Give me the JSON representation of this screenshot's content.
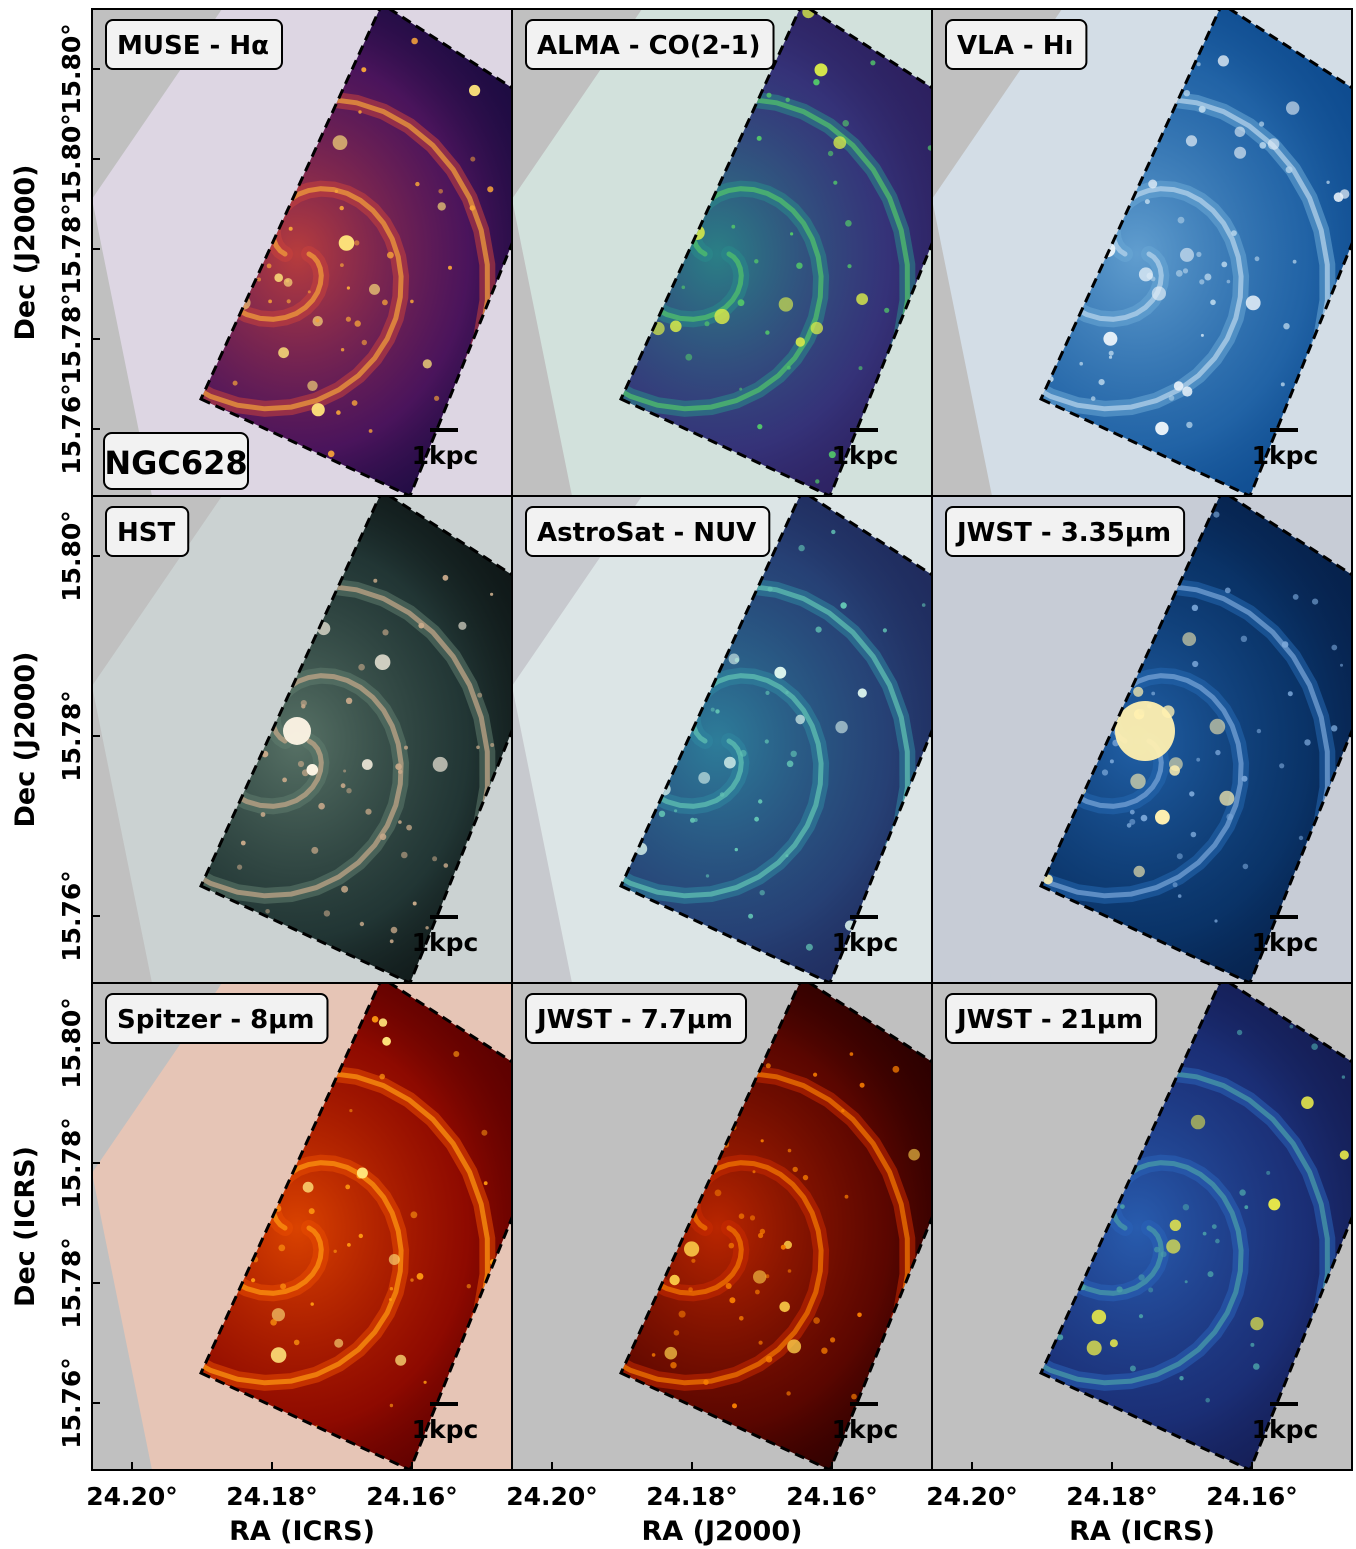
{
  "figure": {
    "galaxy_label": "NGC628",
    "scale_bar_label": "1kpc",
    "rows": [
      {
        "ylabel": "Dec (J2000)",
        "yticks": [
          "15.80°",
          "15.80°",
          "15.78°",
          "15.78°",
          "15.76°"
        ],
        "panels": [
          {
            "title": "MUSE - Hα",
            "colormap": "inferno",
            "colors": [
              "#1a0b40",
              "#6a1a6e",
              "#c9423c",
              "#f4a23a",
              "#fde27a"
            ],
            "overlay": "#e7ddef",
            "background": "#c0c0c0"
          },
          {
            "title": "ALMA - CO(2-1)",
            "colormap": "viridis",
            "colors": [
              "#2c1f5e",
              "#3b3f8a",
              "#2a8a8a",
              "#52c46a",
              "#d6e84a"
            ],
            "overlay": "#d8ece6",
            "background": "#c0c0c0"
          },
          {
            "title": "VLA - Hı",
            "colormap": "blues",
            "colors": [
              "#0d4a8e",
              "#2e73b5",
              "#6aa7d6",
              "#b9d6ec",
              "#e6f0f8"
            ],
            "overlay": "#d9e7f3",
            "background": "#c0c0c0"
          }
        ]
      },
      {
        "ylabel": "Dec (J2000)",
        "yticks": [
          "15.80°",
          "15.78°",
          "15.76°"
        ],
        "panels": [
          {
            "title": "HST",
            "colormap": "rgb",
            "colors": [
              "#0e1616",
              "#2e4a48",
              "#5f7b6e",
              "#c7a98a",
              "#fff6e6"
            ],
            "overlay": "#cfd8d8",
            "background": "#c0c0c0"
          },
          {
            "title": "AstroSat - NUV",
            "colormap": "mako",
            "colors": [
              "#1f2a5c",
              "#2b4f85",
              "#2f86a0",
              "#63c4b4",
              "#dcf5ee"
            ],
            "overlay": "#e3eeee",
            "background": "#c7c9ce"
          },
          {
            "title": "JWST - 3.35µm",
            "colormap": "blue-gold",
            "colors": [
              "#06204a",
              "#0c3f7a",
              "#2467b0",
              "#7ba7d8",
              "#fff0b0"
            ],
            "overlay": "#c7ccd6",
            "background": "#c7ccd6"
          }
        ]
      },
      {
        "ylabel": "Dec (ICRS)",
        "yticks": [
          "15.80°",
          "15.78°",
          "15.78°",
          "15.76°"
        ],
        "panels": [
          {
            "title": "Spitzer - 8µm",
            "colormap": "hot",
            "colors": [
              "#5a0000",
              "#b01000",
              "#e84a00",
              "#ff9a10",
              "#ffe47a"
            ],
            "overlay": "#f3c7b3",
            "background": "#c0c0c0"
          },
          {
            "title": "JWST - 7.7µm",
            "colormap": "hot",
            "colors": [
              "#2a0000",
              "#7a0a00",
              "#c92a00",
              "#f57b00",
              "#ffd24a"
            ],
            "overlay": "#c0c0c0",
            "background": "#c0c0c0"
          },
          {
            "title": "JWST - 21µm",
            "colormap": "haline",
            "colors": [
              "#141c52",
              "#1f3a8c",
              "#2a63b8",
              "#4aa0a8",
              "#e6e84a"
            ],
            "overlay": "#c0c0c0",
            "background": "#c0c0c0"
          }
        ]
      }
    ],
    "columns": [
      {
        "xlabel": "RA (ICRS)",
        "xticks": [
          "24.20°",
          "24.18°",
          "24.16°"
        ]
      },
      {
        "xlabel": "RA (J2000)",
        "xticks": [
          "24.20°",
          "24.18°",
          "24.16°"
        ]
      },
      {
        "xlabel": "RA (ICRS)",
        "xticks": [
          "24.20°",
          "24.18°",
          "24.16°"
        ]
      }
    ]
  }
}
